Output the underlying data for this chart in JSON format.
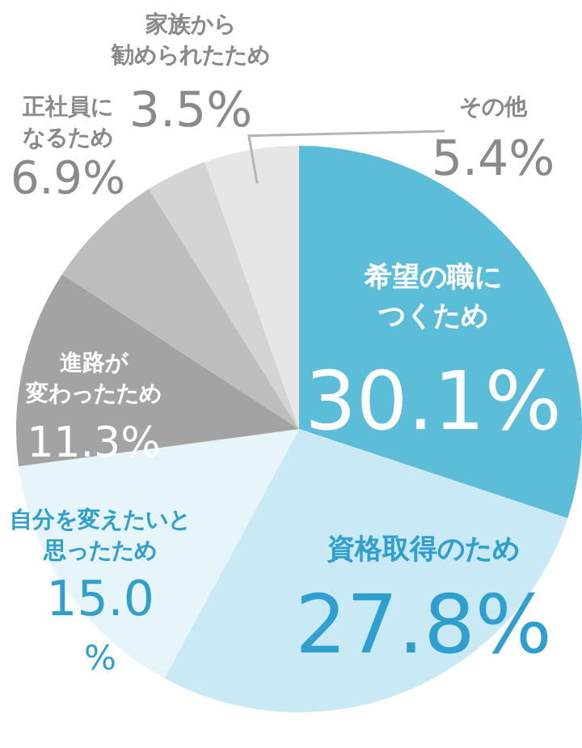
{
  "chart_data": {
    "type": "pie",
    "categories": [
      "希望の職につくため",
      "資格取得のため",
      "自分を変えたいと思ったため",
      "進路が変わったため",
      "正社員になるため",
      "家族から勧められたため",
      "その他"
    ],
    "values": [
      30.1,
      27.8,
      15.0,
      11.3,
      6.9,
      3.5,
      5.4
    ],
    "value_labels": [
      "30.1%",
      "27.8%",
      "15.0%",
      "11.3%",
      "6.9%",
      "3.5%",
      "5.4%"
    ],
    "colors": [
      "#5bbdd8",
      "#c9e9f4",
      "#e6f5fa",
      "#a3a3a3",
      "#bdbdbd",
      "#d4d4d4",
      "#e6e6e6"
    ],
    "legend": false
  }
}
